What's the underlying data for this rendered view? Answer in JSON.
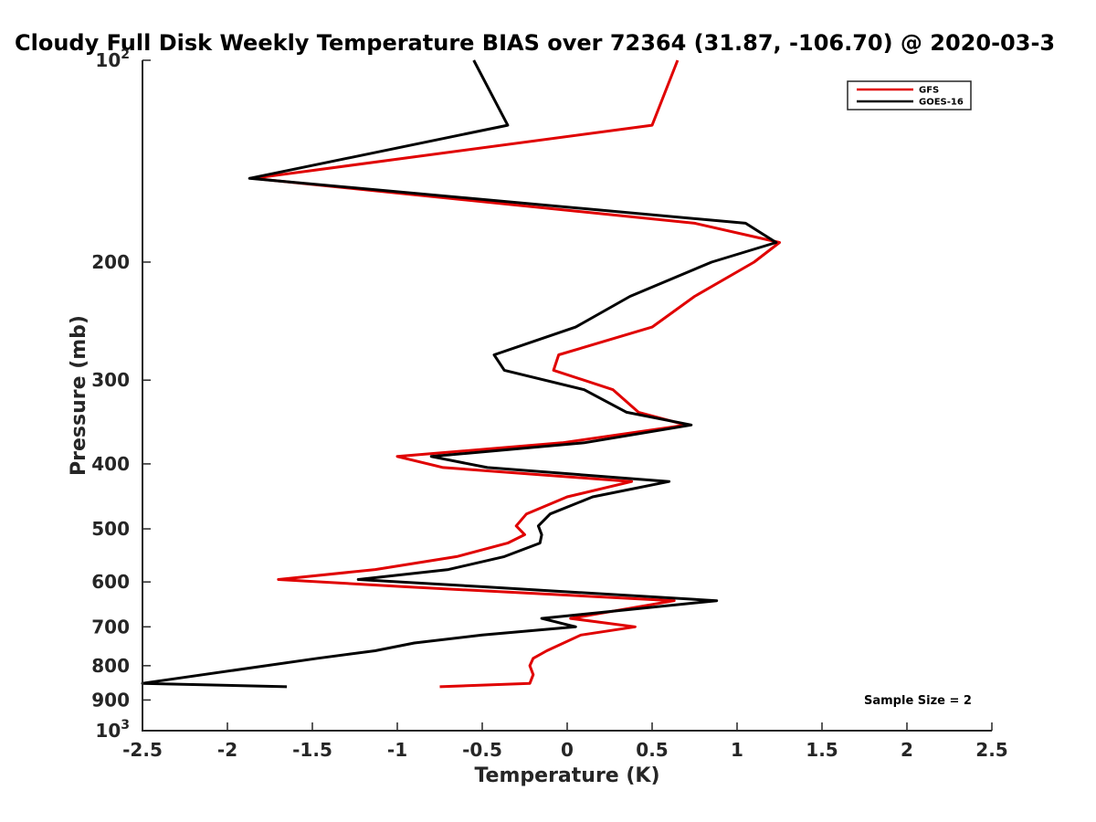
{
  "chart_data": {
    "type": "line",
    "title": "Cloudy Full Disk Weekly Temperature BIAS over 72364 (31.87, -106.70) @ 2020-03-3",
    "xlabel": "Temperature (K)",
    "ylabel": "Pressure (mb)",
    "xlim": [
      -2.5,
      2.5
    ],
    "ylim": [
      1000,
      100
    ],
    "yscale": "log",
    "x_ticks": [
      -2.5,
      -2,
      -1.5,
      -1,
      -0.5,
      0,
      0.5,
      1,
      1.5,
      2,
      2.5
    ],
    "x_tick_labels": [
      "-2.5",
      "-2",
      "-1.5",
      "-1",
      "-0.5",
      "0",
      "0.5",
      "1",
      "1.5",
      "2",
      "2.5"
    ],
    "y_ticks": [
      100,
      200,
      300,
      400,
      500,
      600,
      700,
      800,
      900,
      1000
    ],
    "y_tick_labels": [
      {
        "base": "10",
        "sup": "2"
      },
      {
        "base": "200"
      },
      {
        "base": "300"
      },
      {
        "base": "400"
      },
      {
        "base": "500"
      },
      {
        "base": "600"
      },
      {
        "base": "700"
      },
      {
        "base": "800"
      },
      {
        "base": "900"
      },
      {
        "base": "10",
        "sup": "3"
      }
    ],
    "legend": {
      "placement": "top-right"
    },
    "grid": false,
    "annotation": "Sample Size = 2",
    "series": [
      {
        "name": "GFS",
        "color": "#e00000",
        "points": [
          {
            "x": 0.65,
            "p": 100
          },
          {
            "x": 0.5,
            "p": 125
          },
          {
            "x": -1.85,
            "p": 150
          },
          {
            "x": 0.75,
            "p": 175
          },
          {
            "x": 1.25,
            "p": 187
          },
          {
            "x": 1.1,
            "p": 200
          },
          {
            "x": 0.75,
            "p": 225
          },
          {
            "x": 0.5,
            "p": 250
          },
          {
            "x": -0.05,
            "p": 275
          },
          {
            "x": -0.08,
            "p": 290
          },
          {
            "x": 0.27,
            "p": 310
          },
          {
            "x": 0.42,
            "p": 335
          },
          {
            "x": 0.7,
            "p": 350
          },
          {
            "x": -0.03,
            "p": 372
          },
          {
            "x": -1.0,
            "p": 390
          },
          {
            "x": -0.73,
            "p": 405
          },
          {
            "x": 0.38,
            "p": 425
          },
          {
            "x": 0.0,
            "p": 448
          },
          {
            "x": -0.24,
            "p": 475
          },
          {
            "x": -0.3,
            "p": 495
          },
          {
            "x": -0.25,
            "p": 510
          },
          {
            "x": -0.35,
            "p": 525
          },
          {
            "x": -0.65,
            "p": 550
          },
          {
            "x": -1.13,
            "p": 575
          },
          {
            "x": -1.7,
            "p": 595
          },
          {
            "x": -0.96,
            "p": 610
          },
          {
            "x": 0.63,
            "p": 640
          },
          {
            "x": 0.02,
            "p": 680
          },
          {
            "x": 0.4,
            "p": 700
          },
          {
            "x": 0.08,
            "p": 720
          },
          {
            "x": -0.12,
            "p": 760
          },
          {
            "x": -0.2,
            "p": 780
          },
          {
            "x": -0.22,
            "p": 800
          },
          {
            "x": -0.2,
            "p": 825
          },
          {
            "x": -0.22,
            "p": 850
          },
          {
            "x": -0.75,
            "p": 860
          }
        ]
      },
      {
        "name": "GOES-16",
        "color": "#000000",
        "points": [
          {
            "x": -0.55,
            "p": 100
          },
          {
            "x": -0.35,
            "p": 125
          },
          {
            "x": -1.87,
            "p": 150
          },
          {
            "x": 1.05,
            "p": 175
          },
          {
            "x": 1.23,
            "p": 187
          },
          {
            "x": 0.85,
            "p": 200
          },
          {
            "x": 0.37,
            "p": 225
          },
          {
            "x": 0.05,
            "p": 250
          },
          {
            "x": -0.43,
            "p": 275
          },
          {
            "x": -0.37,
            "p": 290
          },
          {
            "x": 0.1,
            "p": 310
          },
          {
            "x": 0.35,
            "p": 335
          },
          {
            "x": 0.73,
            "p": 350
          },
          {
            "x": 0.1,
            "p": 372
          },
          {
            "x": -0.8,
            "p": 390
          },
          {
            "x": -0.47,
            "p": 405
          },
          {
            "x": 0.6,
            "p": 425
          },
          {
            "x": 0.15,
            "p": 448
          },
          {
            "x": -0.1,
            "p": 475
          },
          {
            "x": -0.17,
            "p": 495
          },
          {
            "x": -0.15,
            "p": 510
          },
          {
            "x": -0.16,
            "p": 525
          },
          {
            "x": -0.37,
            "p": 550
          },
          {
            "x": -0.7,
            "p": 575
          },
          {
            "x": -1.23,
            "p": 595
          },
          {
            "x": -0.5,
            "p": 610
          },
          {
            "x": 0.88,
            "p": 640
          },
          {
            "x": -0.15,
            "p": 680
          },
          {
            "x": 0.05,
            "p": 700
          },
          {
            "x": -0.5,
            "p": 720
          },
          {
            "x": -0.9,
            "p": 740
          },
          {
            "x": -1.13,
            "p": 760
          },
          {
            "x": -1.47,
            "p": 780
          },
          {
            "x": -2.5,
            "p": 850
          },
          {
            "x": -1.65,
            "p": 860
          }
        ]
      }
    ]
  }
}
